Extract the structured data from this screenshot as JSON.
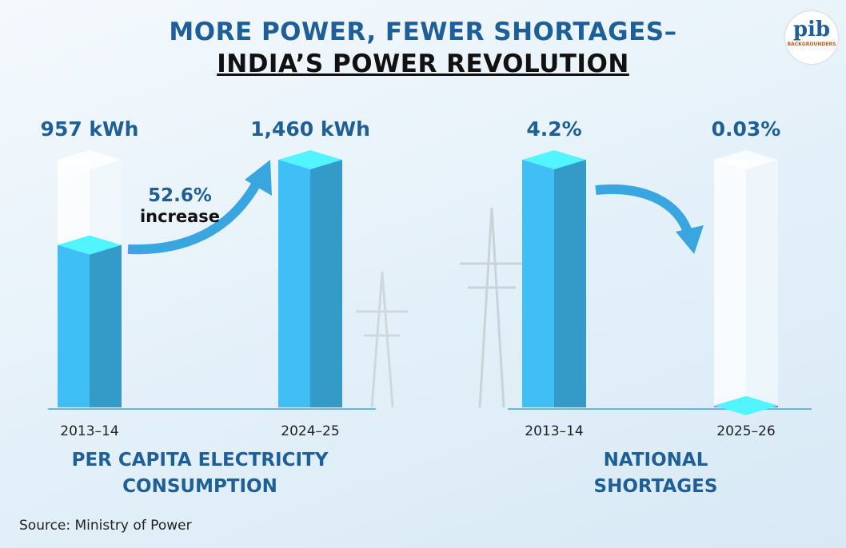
{
  "header": {
    "title_line1": "MORE POWER, FEWER SHORTAGES–",
    "title_line2": "INDIA’S POWER REVOLUTION"
  },
  "logo": {
    "text": "pib",
    "subtext": "BACKGROUNDERS"
  },
  "chart_data": [
    {
      "type": "bar",
      "title": "PER CAPITA ELECTRICITY CONSUMPTION",
      "categories": [
        "2013–14",
        "2024–25"
      ],
      "values": [
        957,
        1460
      ],
      "value_labels": [
        "957 kWh",
        "1,460 kWh"
      ],
      "color": "#3db5ea",
      "annotations": [
        "52.6%",
        "increase"
      ]
    },
    {
      "type": "bar",
      "title": "NATIONAL SHORTAGES",
      "categories": [
        "2013–14",
        "2025–26"
      ],
      "values": [
        4.2,
        0.03
      ],
      "value_labels": [
        "4.2%",
        "0.03%"
      ],
      "color": "#3db5ea"
    }
  ],
  "source": "Source: Ministry of Power"
}
